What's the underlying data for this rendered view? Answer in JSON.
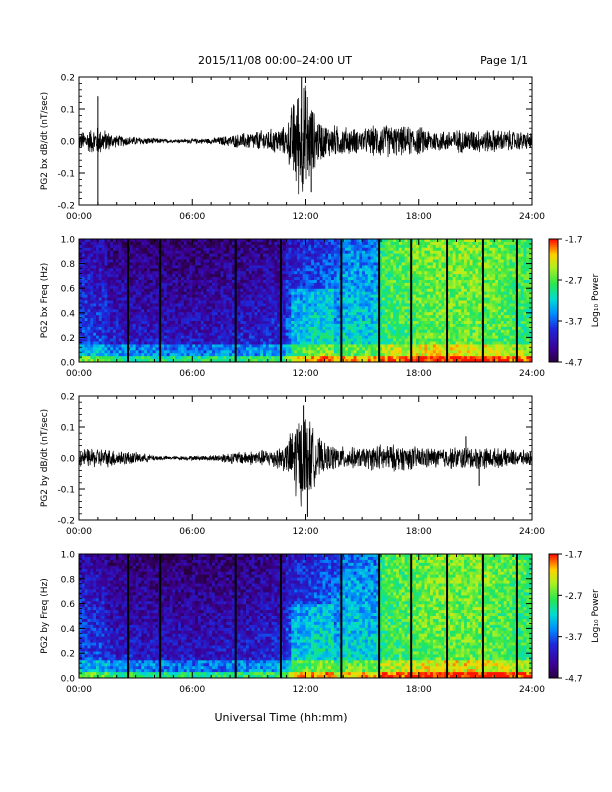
{
  "header": {
    "title": "2015/11/08  00:00–24:00 UT",
    "page": "Page 1/1"
  },
  "xaxis": {
    "label": "Universal Time (hh:mm)",
    "ticks": [
      "00:00",
      "06:00",
      "12:00",
      "18:00",
      "24:00"
    ]
  },
  "colorbar": {
    "label": "Log₁₀ Power",
    "ticks": [
      "-1.7",
      "-2.7",
      "-3.7",
      "-4.7"
    ]
  },
  "chart_data": [
    {
      "type": "line",
      "ylabel": "PG2 bx dB/dt (nT/sec)",
      "xlim": [
        0,
        24
      ],
      "ylim": [
        -0.2,
        0.2
      ],
      "yticks": [
        "0.2",
        "0.1",
        "0.0",
        "-0.1",
        "-0.2"
      ],
      "envelope": {
        "hours": [
          0,
          1,
          2,
          3,
          4,
          5,
          6,
          7,
          8,
          9,
          10,
          11,
          11.5,
          12,
          12.5,
          13,
          14,
          15,
          16,
          17,
          18,
          19,
          20,
          21,
          22,
          23,
          24
        ],
        "amplitude": [
          0.03,
          0.05,
          0.02,
          0.015,
          0.01,
          0.005,
          0.008,
          0.01,
          0.02,
          0.03,
          0.04,
          0.05,
          0.18,
          0.2,
          0.09,
          0.06,
          0.05,
          0.04,
          0.06,
          0.05,
          0.05,
          0.035,
          0.04,
          0.04,
          0.04,
          0.035,
          0.03
        ]
      },
      "spikes": [
        {
          "hour": 1.0,
          "value": -0.2
        },
        {
          "hour": 1.0,
          "value": 0.14
        },
        {
          "hour": 11.8,
          "value": 0.2
        },
        {
          "hour": 12.3,
          "value": -0.16
        }
      ]
    },
    {
      "type": "heatmap",
      "ylabel": "PG2 bx Freq (Hz)",
      "xlim": [
        0,
        24
      ],
      "ylim": [
        0,
        1.0
      ],
      "yticks": [
        "1.0",
        "0.8",
        "0.6",
        "0.4",
        "0.2",
        "0.0"
      ],
      "zlim": [
        -4.7,
        -1.7
      ],
      "gap_hours": [
        2.6,
        4.3,
        8.3,
        10.7,
        13.9,
        15.9,
        17.6,
        19.5,
        21.4,
        23.2
      ]
    },
    {
      "type": "line",
      "ylabel": "PG2 by dB/dt (nT/sec)",
      "xlim": [
        0,
        24
      ],
      "ylim": [
        -0.2,
        0.2
      ],
      "yticks": [
        "0.2",
        "0.1",
        "0.0",
        "-0.1",
        "-0.2"
      ],
      "envelope": {
        "hours": [
          0,
          1,
          2,
          3,
          4,
          5,
          6,
          7,
          8,
          9,
          10,
          11,
          11.5,
          12,
          12.5,
          13,
          14,
          15,
          16,
          17,
          18,
          19,
          20,
          21,
          22,
          23,
          24
        ],
        "amplitude": [
          0.03,
          0.035,
          0.03,
          0.02,
          0.01,
          0.006,
          0.008,
          0.01,
          0.02,
          0.025,
          0.03,
          0.05,
          0.15,
          0.17,
          0.09,
          0.05,
          0.04,
          0.035,
          0.05,
          0.045,
          0.04,
          0.035,
          0.04,
          0.04,
          0.035,
          0.03,
          0.025
        ]
      },
      "spikes": [
        {
          "hour": 11.9,
          "value": 0.17
        },
        {
          "hour": 12.1,
          "value": -0.19
        },
        {
          "hour": 21.2,
          "value": -0.09
        },
        {
          "hour": 20.5,
          "value": 0.07
        }
      ]
    },
    {
      "type": "heatmap",
      "ylabel": "PG2 by Freq (Hz)",
      "xlim": [
        0,
        24
      ],
      "ylim": [
        0,
        1.0
      ],
      "yticks": [
        "1.0",
        "0.8",
        "0.6",
        "0.4",
        "0.2",
        "0.0"
      ],
      "zlim": [
        -4.7,
        -1.7
      ],
      "gap_hours": [
        2.6,
        4.3,
        8.3,
        10.7,
        13.9,
        15.9,
        17.6,
        19.5,
        21.4,
        23.2
      ]
    }
  ]
}
